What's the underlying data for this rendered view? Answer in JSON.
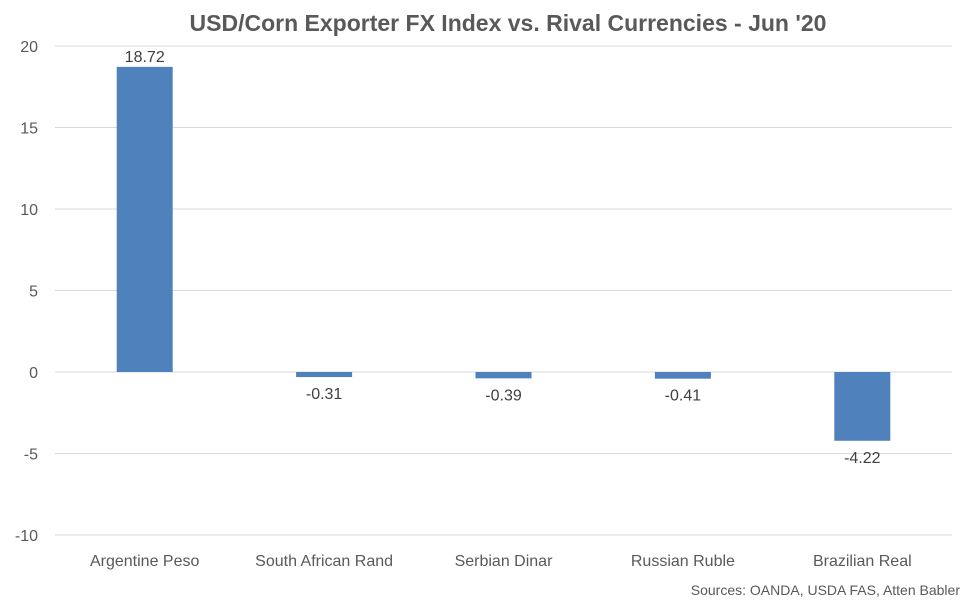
{
  "chart_data": {
    "type": "bar",
    "title": "USD/Corn Exporter FX Index vs. Rival Currencies - Jun '20",
    "categories": [
      "Argentine Peso",
      "South African Rand",
      "Serbian Dinar",
      "Russian Ruble",
      "Brazilian Real"
    ],
    "values": [
      18.72,
      -0.31,
      -0.39,
      -0.41,
      -4.22
    ],
    "data_labels": [
      "18.72",
      "-0.31",
      "-0.39",
      "-0.41",
      "-4.22"
    ],
    "xlabel": "",
    "ylabel": "",
    "ylim": [
      -10,
      20
    ],
    "yticks": [
      20,
      15,
      10,
      5,
      0,
      -5,
      -10
    ],
    "grid": true,
    "legend": "none",
    "bar_color": "#4f81bd",
    "gridline_color": "#d9d9d9",
    "text_color": "#595959"
  },
  "source_note": "Sources: OANDA, USDA FAS, Atten Babler"
}
